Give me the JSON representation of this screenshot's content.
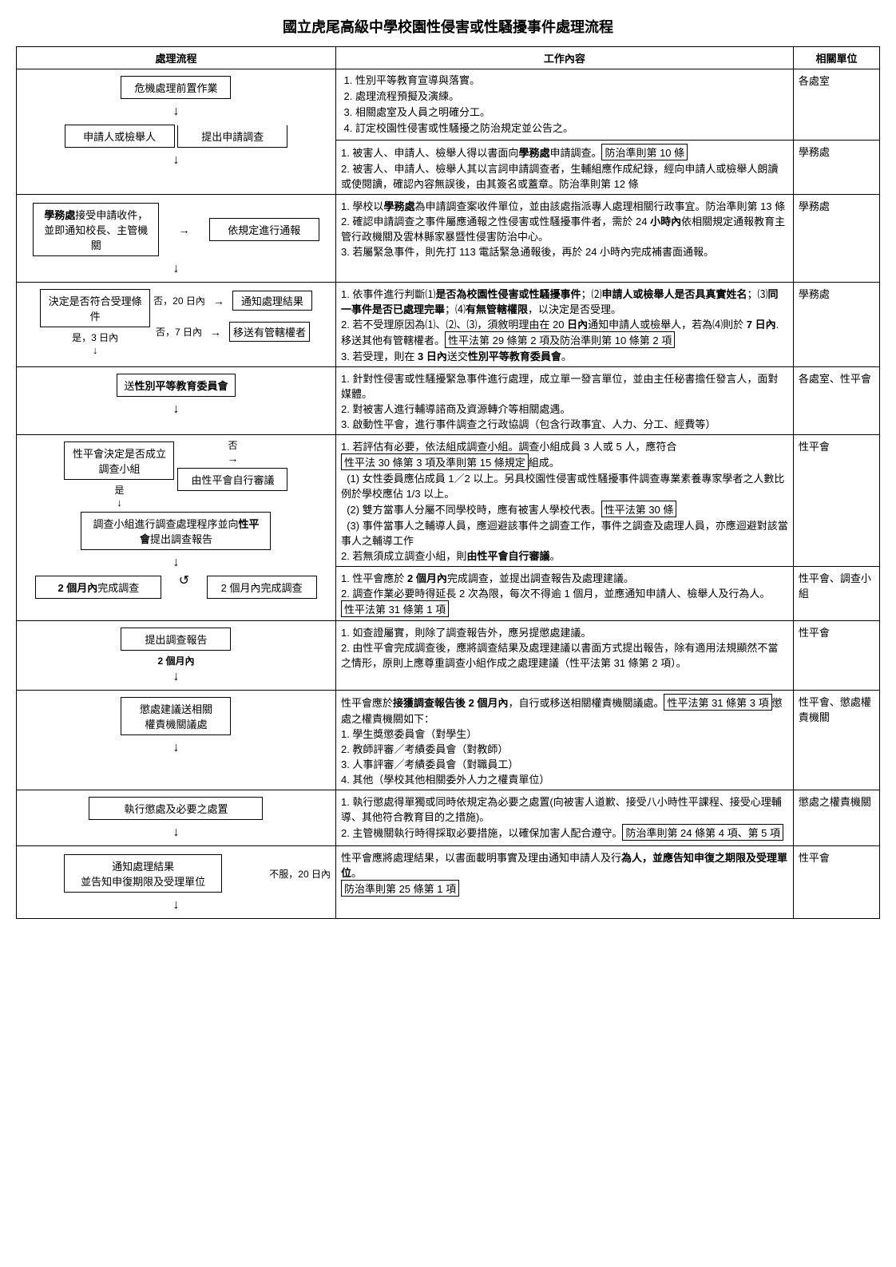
{
  "title": "國立虎尾高級中學校園性侵害或性騷擾事件處理流程",
  "headers": {
    "flow": "處理流程",
    "content": "工作內容",
    "unit": "相關單位"
  },
  "rows": [
    {
      "flow": {
        "boxes": [
          "危機處理前置作業"
        ]
      },
      "content_items": [
        "性別平等教育宣導與落實。",
        "處理流程預擬及演練。",
        "相關處室及人員之明確分工。",
        "訂定校園性侵害或性騷擾之防治規定並公告之。"
      ],
      "unit": "各處室"
    },
    {
      "flow": {
        "boxes": [
          "申請人或檢舉人",
          "提出申請調查"
        ]
      },
      "content_raw": "1. 被害人、申請人、檢舉人得以書面向<b>學務處</b>申請調查。<span class='boxed-inline'>防治準則第 10 條</span><br>2. 被害人、申請人、檢舉人其以言詞申請調查者，生輔組應作成紀錄，經向申請人或檢舉人朗讀或使閱讀，確認內容無誤後，由其簽名或蓋章。防治準則第 12 條",
      "unit": "學務處"
    },
    {
      "flow": {
        "left_box": "<b>學務處</b>接受申請收件，並即通知校長、主管機關",
        "right_box": "依規定進行通報"
      },
      "content_raw": "1. 學校以<b>學務處</b>為申請調查案收件單位，並由該處指派專人處理相關行政事宜。防治準則第 13 條<br>2. 確認申請調查之事件屬應通報之性侵害或性騷擾事件者，需於 24 <b>小時內</b>依相關規定通報教育主管行政機關及雲林縣家暴暨性侵害防治中心。<br>3. 若屬緊急事件，則先打 113 電話緊急通報後，再於 24 小時內完成補書面通報。",
      "unit": "學務處"
    },
    {
      "flow": {
        "main_box": "決定是否符合受理條件",
        "right_label_1": "否，20 日內",
        "right_box_1": "通知處理結果",
        "right_label_2": "否，7 日內",
        "right_box_2": "移送有管轄權者",
        "down_label": "是，3 日內"
      },
      "content_raw": "1. 依事件進行判斷⑴<b>是否為校園性侵害或性騷擾事件</b>；⑵<b>申請人或檢舉人是否具真實姓名</b>；⑶<b>同一事件是否已處理完畢</b>；⑷<b>有無管轄權限</b>，以決定是否受理。<br>2. 若不受理原因為⑴、⑵、⑶，須敘明理由在 20 <b>日內</b>通知申請人或檢舉人，若為⑷則於 <b>7 日內</b>.移送其他有管轄權者。<span class='boxed-inline'>性平法第 29 條第 2 項及防治準則第 10 條第 2 項</span><br>3. 若受理，則在 <b>3 日內</b>送交<b>性別平等教育委員會</b>。",
      "unit": "學務處"
    },
    {
      "flow": {
        "boxes_bold": [
          "送性別平等教育委員會"
        ]
      },
      "content_raw": "1. 針對性侵害或性騷擾緊急事件進行處理，成立單一發言單位，並由主任秘書擔任發言人，面對媒體。<br>2. 對被害人進行輔導諮商及資源轉介等相關處遇。<br>3. 啟動性平會，進行事件調查之行政協調（包含行政事宜、人力、分工、經費等）",
      "unit": "各處室、性平會"
    },
    {
      "flow": {
        "main_box": "性平會決定是否成立調查小組",
        "right_box": "由性平會自行審議",
        "right_label": "否",
        "down_label": "是"
      },
      "content_raw": "1. 若評估有必要，依法組成調查小組。調查小組成員 3 人或 5 人，應符合<span class='boxed-inline'>性平法 30 條第 3 項及準則第 15 條規定</span>組成。<br>&nbsp;&nbsp;(1) 女性委員應佔成員 1／2 以上。另具校園性侵害或性騷擾事件調查專業素養專家學者之人數比例於學校應佔 1/3 以上。<br>&nbsp;&nbsp;(2) 雙方當事人分屬不同學校時，應有被害人學校代表。<span class='boxed-inline'>性平法第 30 條</span><br>&nbsp;&nbsp;(3) 事件當事人之輔導人員，應迴避該事件之調查工作，事件之調查及處理人員，亦應迴避對該當事人之輔導工作<br>2. 若無須成立調查小組，則<b>由性平會自行審議</b>。",
      "unit": "性平會"
    },
    {
      "flow": {
        "main_box": "調查小組進行調查處理程序並向<b>性平會</b>提出調查報告",
        "sub_box": "<b>2 個月內</b>完成調查",
        "right_box": "2 個月內完成調查"
      },
      "content_raw": "1. 性平會應於 <b>2 個月內</b>完成調查，並提出調查報告及處理建議。<br>2. 調查作業必要時得延長 2 次為限，每次不得逾 1 個月，並應通知申請人、檢舉人及行為人。<span class='boxed-inline'>性平法第 31 條第 1 項</span>",
      "unit": "性平會、調查小組"
    },
    {
      "flow": {
        "boxes": [
          "提出調查報告"
        ],
        "sub_label": "2 個月內"
      },
      "content_raw": "1. 如查證屬實，則除了調查報告外，應另提懲處建議。<br>2. 由性平會完成調查後，應將調查結果及處理建議以書面方式提出報告，除有適用法規顯然不當之情形，原則上應尊重調查小組作成之處理建議（性平法第 31 條第 2 項）。",
      "unit": "性平會"
    },
    {
      "flow": {
        "boxes": [
          "懲處建議送相關",
          "權責機關議處"
        ]
      },
      "content_raw": "性平會應於<b>接獲調查報告後 2 個月內</b>，自行或移送相關權責機關議處。<span class='boxed-inline'>性平法第 31 條第 3 項</span>懲處之權責機關如下：<br>1. 學生獎懲委員會（對學生）<br>2. 教師評審／考績委員會（對教師）<br>3. 人事評審／考績委員會（對職員工）<br>4. 其他（學校其他相關委外人力之權責單位）",
      "unit": "性平會、懲處權責機關"
    },
    {
      "flow": {
        "boxes": [
          "執行懲處及必要之處置"
        ]
      },
      "content_raw": "1. 執行懲處得單獨或同時依規定為必要之處置(向被害人道歉、接受八小時性平課程、接受心理輔導、其他符合教育目的之措施)。<br>2. 主管機關執行時得採取必要措施，以確保加害人配合遵守。<span class='boxed-inline'>防治準則第 24 條第 4 項、第 5 項</span>",
      "unit": "懲處之權責機關"
    },
    {
      "flow": {
        "main_box": "通知處理結果<br>並告知申復期限及受理單位",
        "side_label": "不服，20 日內"
      },
      "content_raw": "性平會應將處理結果，以書面載明事實及理由通知申請人及行<b>為人，並應告知申復之期限及受理單位</b>。<br><span class='boxed-inline'>防治準則第 25 條第 1 項</span>",
      "unit": "性平會"
    }
  ]
}
